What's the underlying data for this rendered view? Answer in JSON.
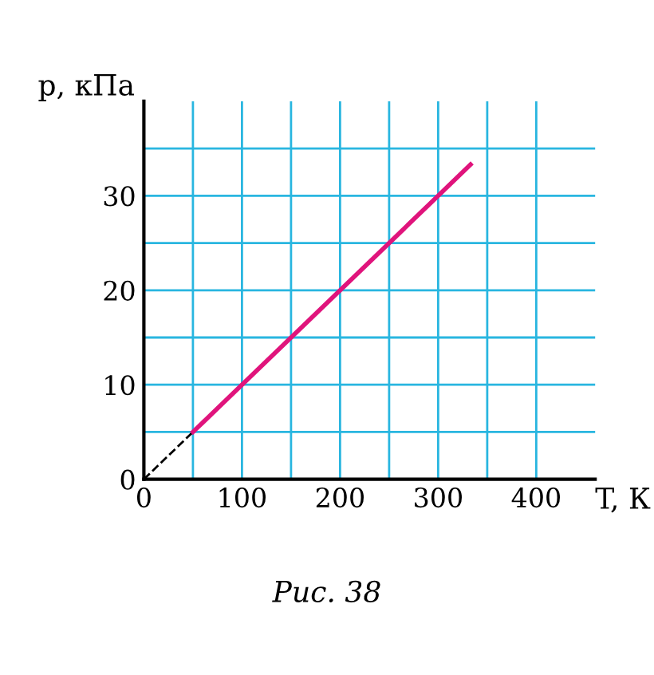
{
  "chart_data": {
    "type": "line",
    "xlabel": "T, К",
    "ylabel": "p, кПа",
    "xlim": [
      0,
      460
    ],
    "ylim": [
      0,
      40
    ],
    "xticks": [
      0,
      {
        "value": 50,
        "label": null
      },
      100,
      {
        "value": 150,
        "label": null
      },
      200,
      {
        "value": 250,
        "label": null
      },
      300,
      {
        "value": 350,
        "label": null
      },
      400
    ],
    "yticks": [
      0,
      {
        "value": 5,
        "label": null
      },
      10,
      {
        "value": 15,
        "label": null
      },
      20,
      {
        "value": 25,
        "label": null
      },
      30,
      {
        "value": 35,
        "label": null
      }
    ],
    "grid": true,
    "series": [
      {
        "x": [
          0,
          50
        ],
        "values": [
          0,
          5
        ],
        "color": "#000000",
        "line_style": "dashed"
      },
      {
        "x": [
          50,
          333
        ],
        "values": [
          5,
          33.3
        ],
        "color": "#e0147c",
        "line_style": "solid"
      }
    ],
    "annotations": [
      "Рис. 38"
    ]
  }
}
